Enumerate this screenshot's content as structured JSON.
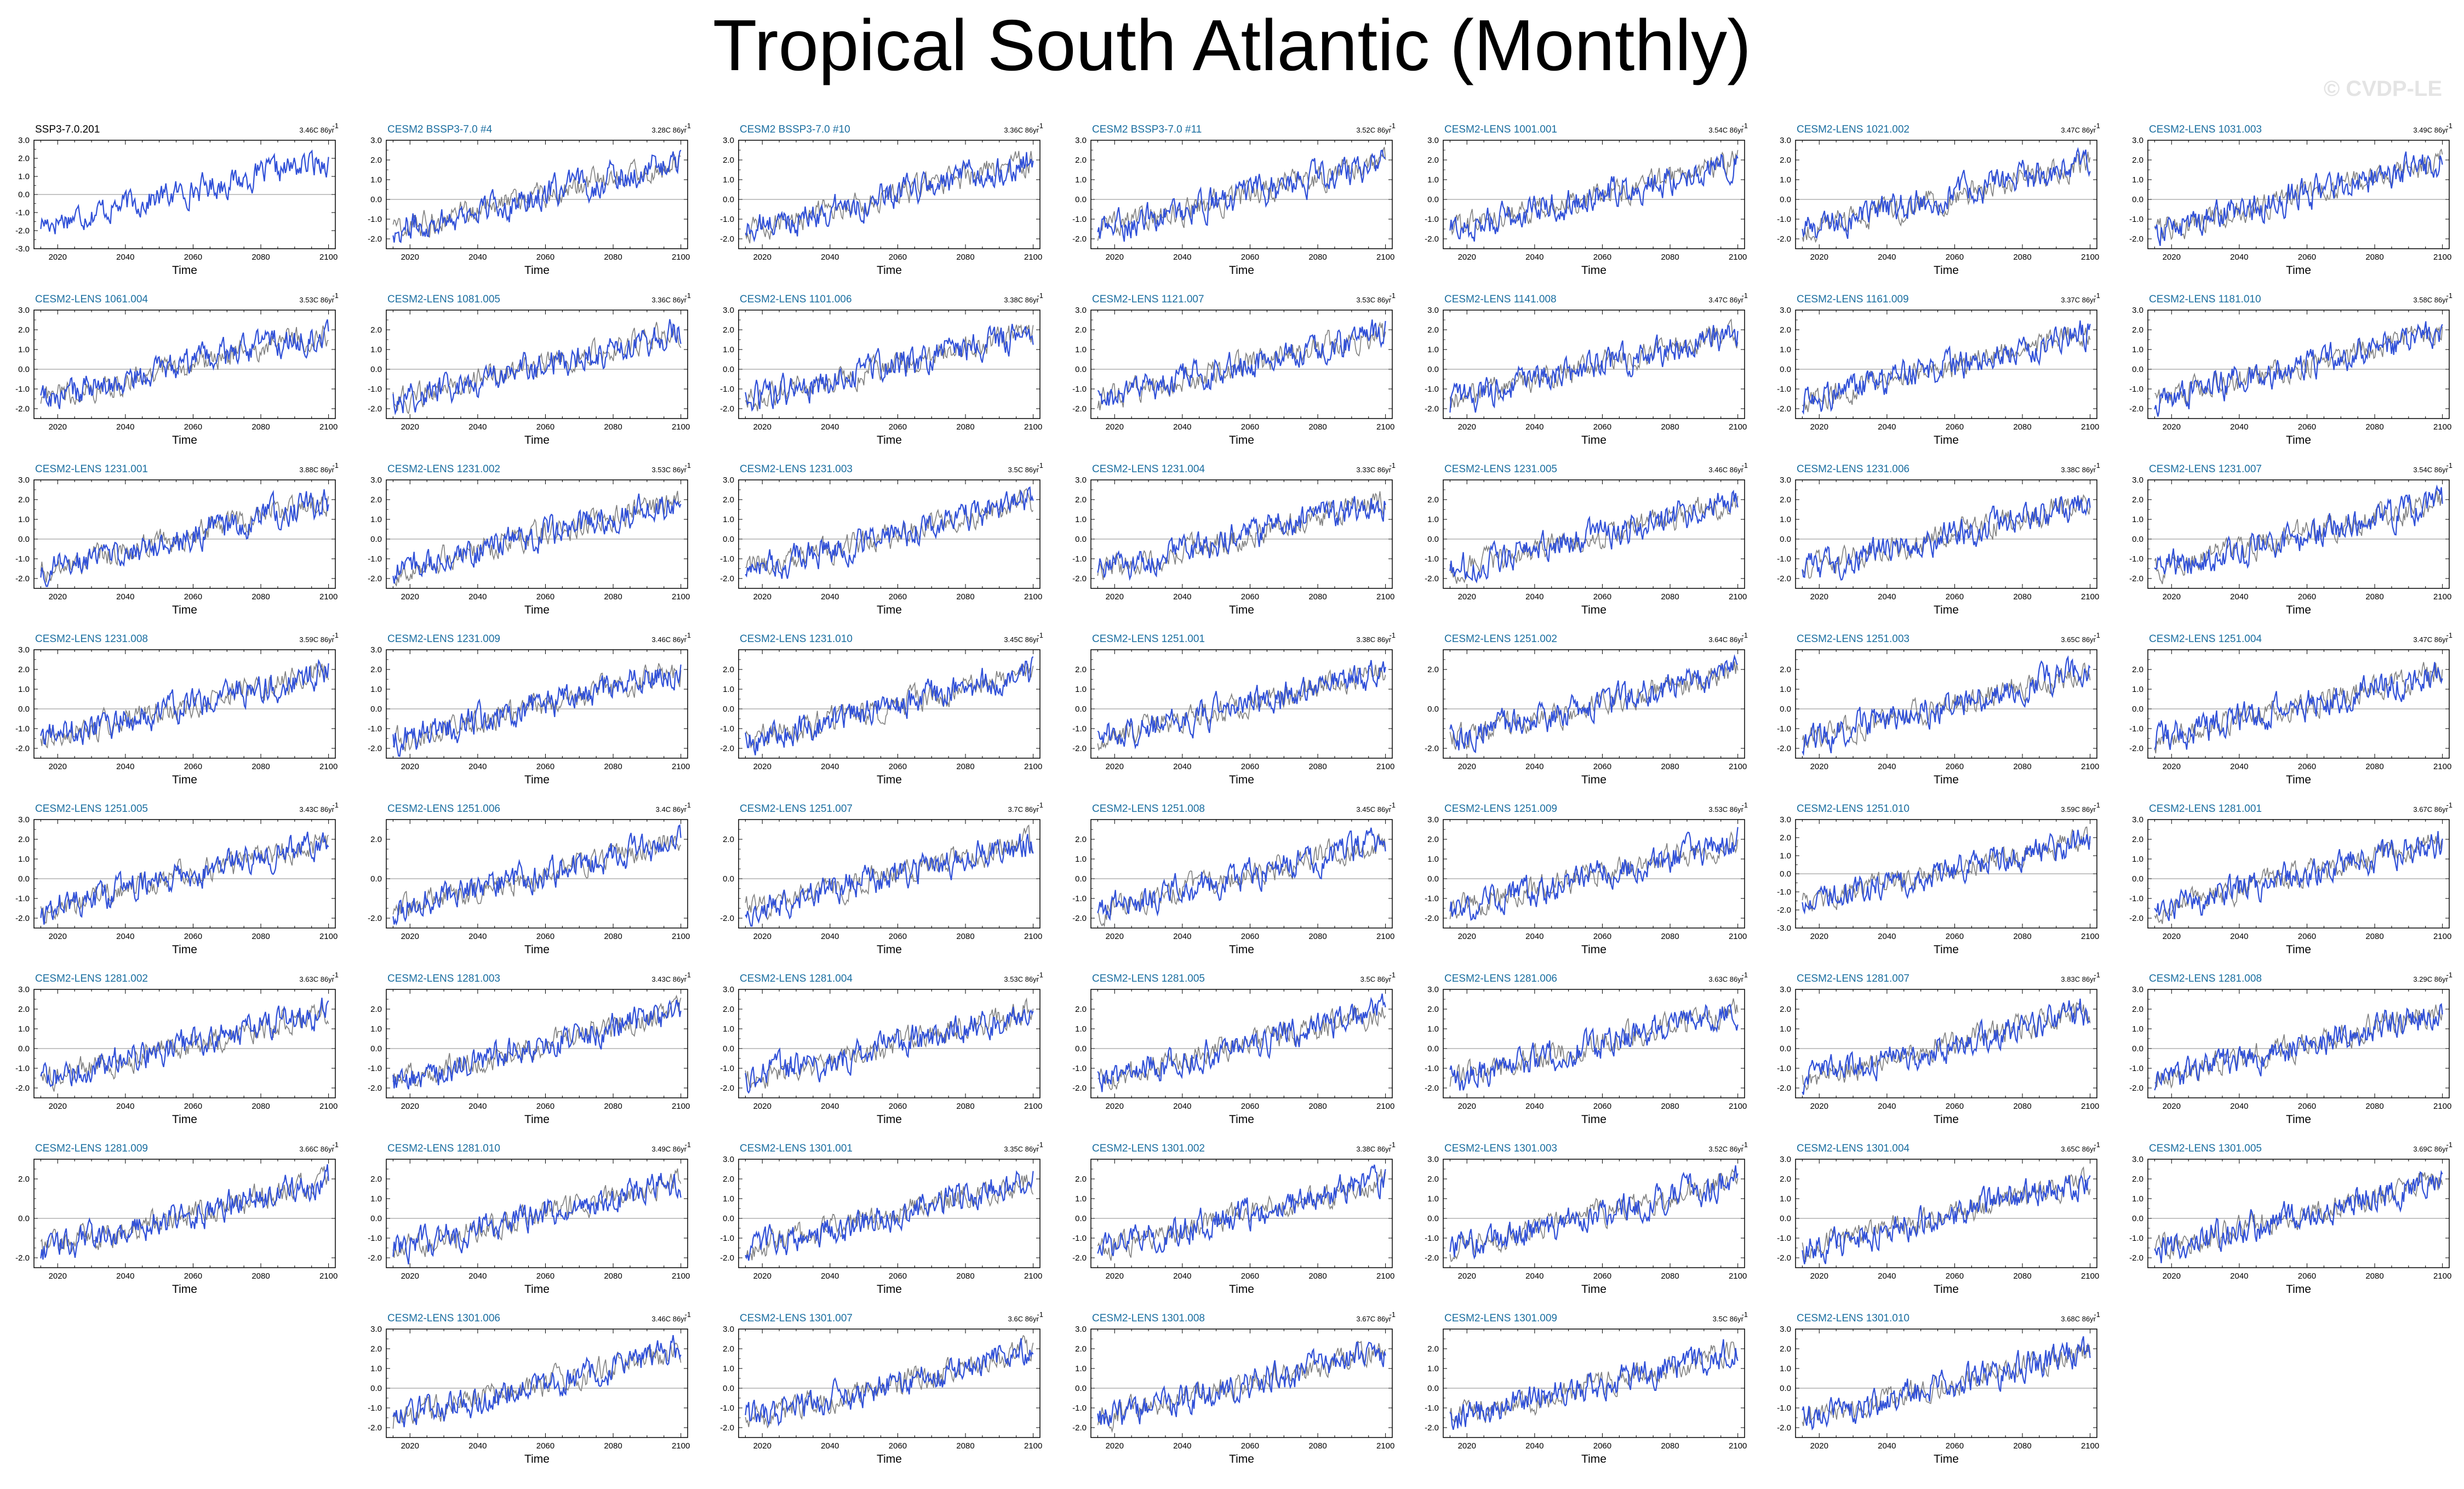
{
  "title": "Tropical South Atlantic (Monthly)",
  "watermark": "© CVDP-LE",
  "chart_data": {
    "type": "line",
    "xlabel": "Time",
    "xlim": [
      2013,
      2102
    ],
    "xticks": [
      2020,
      2040,
      2060,
      2080,
      2100
    ],
    "grid": false,
    "series_colors": {
      "model": "#3050d8",
      "observations": "#7f7f7f"
    },
    "panels": [
      {
        "name": "SSP3-7.0.201",
        "trend": "3.46C 86yr",
        "ylim": [
          -3.0,
          3.0
        ],
        "yticks": [
          "3.0",
          "2.0",
          "1.0",
          "0.0",
          "-1.0",
          "-2.0",
          "-3.0"
        ],
        "obs": true
      },
      {
        "name": "CESM2 BSSP3-7.0 #4",
        "trend": "3.28C 86yr",
        "ylim": [
          -2.5,
          3.0
        ],
        "yticks": [
          "3.0",
          "2.0",
          "1.0",
          "0.0",
          "-1.0",
          "-2.0"
        ]
      },
      {
        "name": "CESM2 BSSP3-7.0 #10",
        "trend": "3.36C 86yr",
        "ylim": [
          -2.5,
          3.0
        ],
        "yticks": [
          "3.0",
          "2.0",
          "1.0",
          "0.0",
          "-1.0",
          "-2.0"
        ]
      },
      {
        "name": "CESM2 BSSP3-7.0 #11",
        "trend": "3.52C 86yr",
        "ylim": [
          -2.5,
          3.0
        ],
        "yticks": [
          "3.0",
          "2.0",
          "1.0",
          "0.0",
          "-1.0",
          "-2.0"
        ]
      },
      {
        "name": "CESM2-LENS 1001.001",
        "trend": "3.54C 86yr",
        "ylim": [
          -2.5,
          3.0
        ],
        "yticks": [
          "3.0",
          "2.0",
          "1.0",
          "0.0",
          "-1.0",
          "-2.0"
        ]
      },
      {
        "name": "CESM2-LENS 1021.002",
        "trend": "3.47C 86yr",
        "ylim": [
          -2.5,
          3.0
        ],
        "yticks": [
          "3.0",
          "2.0",
          "1.0",
          "0.0",
          "-1.0",
          "-2.0"
        ]
      },
      {
        "name": "CESM2-LENS 1031.003",
        "trend": "3.49C 86yr",
        "ylim": [
          -2.5,
          3.0
        ],
        "yticks": [
          "3.0",
          "2.0",
          "1.0",
          "0.0",
          "-1.0",
          "-2.0"
        ]
      },
      {
        "name": "CESM2-LENS 1061.004",
        "trend": "3.53C 86yr",
        "ylim": [
          -2.5,
          3.0
        ],
        "yticks": [
          "3.0",
          "2.0",
          "1.0",
          "0.0",
          "-1.0",
          "-2.0"
        ]
      },
      {
        "name": "CESM2-LENS 1081.005",
        "trend": "3.36C 86yr",
        "ylim": [
          -2.5,
          3.0
        ],
        "yticks": [
          "2.0",
          "1.0",
          "0.0",
          "-1.0",
          "-2.0"
        ]
      },
      {
        "name": "CESM2-LENS 1101.006",
        "trend": "3.38C 86yr",
        "ylim": [
          -2.5,
          3.0
        ],
        "yticks": [
          "3.0",
          "2.0",
          "1.0",
          "0.0",
          "-1.0",
          "-2.0"
        ]
      },
      {
        "name": "CESM2-LENS 1121.007",
        "trend": "3.53C 86yr",
        "ylim": [
          -2.5,
          3.0
        ],
        "yticks": [
          "3.0",
          "2.0",
          "1.0",
          "0.0",
          "-1.0",
          "-2.0"
        ]
      },
      {
        "name": "CESM2-LENS 1141.008",
        "trend": "3.47C 86yr",
        "ylim": [
          -2.5,
          3.0
        ],
        "yticks": [
          "3.0",
          "2.0",
          "1.0",
          "0.0",
          "-1.0",
          "-2.0"
        ]
      },
      {
        "name": "CESM2-LENS 1161.009",
        "trend": "3.37C 86yr",
        "ylim": [
          -2.5,
          3.0
        ],
        "yticks": [
          "3.0",
          "2.0",
          "1.0",
          "0.0",
          "-1.0",
          "-2.0"
        ]
      },
      {
        "name": "CESM2-LENS 1181.010",
        "trend": "3.58C 86yr",
        "ylim": [
          -2.5,
          3.0
        ],
        "yticks": [
          "3.0",
          "2.0",
          "1.0",
          "0.0",
          "-1.0",
          "-2.0"
        ]
      },
      {
        "name": "CESM2-LENS 1231.001",
        "trend": "3.88C 86yr",
        "ylim": [
          -2.5,
          3.0
        ],
        "yticks": [
          "3.0",
          "2.0",
          "1.0",
          "0.0",
          "-1.0",
          "-2.0"
        ]
      },
      {
        "name": "CESM2-LENS 1231.002",
        "trend": "3.53C 86yr",
        "ylim": [
          -2.5,
          3.0
        ],
        "yticks": [
          "3.0",
          "2.0",
          "1.0",
          "0.0",
          "-1.0",
          "-2.0"
        ]
      },
      {
        "name": "CESM2-LENS 1231.003",
        "trend": "3.5C 86yr",
        "ylim": [
          -2.5,
          3.0
        ],
        "yticks": [
          "3.0",
          "2.0",
          "1.0",
          "0.0",
          "-1.0",
          "-2.0"
        ]
      },
      {
        "name": "CESM2-LENS 1231.004",
        "trend": "3.33C 86yr",
        "ylim": [
          -2.5,
          3.0
        ],
        "yticks": [
          "3.0",
          "2.0",
          "1.0",
          "0.0",
          "-1.0",
          "-2.0"
        ]
      },
      {
        "name": "CESM2-LENS 1231.005",
        "trend": "3.46C 86yr",
        "ylim": [
          -2.5,
          3.0
        ],
        "yticks": [
          "2.0",
          "1.0",
          "0.0",
          "-1.0",
          "-2.0"
        ]
      },
      {
        "name": "CESM2-LENS 1231.006",
        "trend": "3.38C 86yr",
        "ylim": [
          -2.5,
          3.0
        ],
        "yticks": [
          "3.0",
          "2.0",
          "1.0",
          "0.0",
          "-1.0",
          "-2.0"
        ]
      },
      {
        "name": "CESM2-LENS 1231.007",
        "trend": "3.54C 86yr",
        "ylim": [
          -2.5,
          3.0
        ],
        "yticks": [
          "3.0",
          "2.0",
          "1.0",
          "0.0",
          "-1.0",
          "-2.0"
        ]
      },
      {
        "name": "CESM2-LENS 1231.008",
        "trend": "3.59C 86yr",
        "ylim": [
          -2.5,
          3.0
        ],
        "yticks": [
          "3.0",
          "2.0",
          "1.0",
          "0.0",
          "-1.0",
          "-2.0"
        ]
      },
      {
        "name": "CESM2-LENS 1231.009",
        "trend": "3.46C 86yr",
        "ylim": [
          -2.5,
          3.0
        ],
        "yticks": [
          "3.0",
          "2.0",
          "1.0",
          "0.0",
          "-1.0",
          "-2.0"
        ]
      },
      {
        "name": "CESM2-LENS 1231.010",
        "trend": "3.45C 86yr",
        "ylim": [
          -2.5,
          3.0
        ],
        "yticks": [
          "2.0",
          "1.0",
          "0.0",
          "-1.0",
          "-2.0"
        ]
      },
      {
        "name": "CESM2-LENS 1251.001",
        "trend": "3.38C 86yr",
        "ylim": [
          -2.5,
          3.0
        ],
        "yticks": [
          "2.0",
          "1.0",
          "0.0",
          "-1.0",
          "-2.0"
        ]
      },
      {
        "name": "CESM2-LENS 1251.002",
        "trend": "3.64C 86yr",
        "ylim": [
          -2.5,
          3.0
        ],
        "yticks": [
          "2.0",
          "0.0",
          "-2.0"
        ]
      },
      {
        "name": "CESM2-LENS 1251.003",
        "trend": "3.65C 86yr",
        "ylim": [
          -2.5,
          3.0
        ],
        "yticks": [
          "2.0",
          "1.0",
          "0.0",
          "-1.0",
          "-2.0"
        ]
      },
      {
        "name": "CESM2-LENS 1251.004",
        "trend": "3.47C 86yr",
        "ylim": [
          -2.5,
          3.0
        ],
        "yticks": [
          "2.0",
          "1.0",
          "0.0",
          "-1.0",
          "-2.0"
        ]
      },
      {
        "name": "CESM2-LENS 1251.005",
        "trend": "3.43C 86yr",
        "ylim": [
          -2.5,
          3.0
        ],
        "yticks": [
          "3.0",
          "2.0",
          "1.0",
          "0.0",
          "-1.0",
          "-2.0"
        ]
      },
      {
        "name": "CESM2-LENS 1251.006",
        "trend": "3.4C 86yr",
        "ylim": [
          -2.5,
          3.0
        ],
        "yticks": [
          "2.0",
          "0.0",
          "-2.0"
        ]
      },
      {
        "name": "CESM2-LENS 1251.007",
        "trend": "3.7C 86yr",
        "ylim": [
          -2.5,
          3.0
        ],
        "yticks": [
          "2.0",
          "0.0",
          "-2.0"
        ]
      },
      {
        "name": "CESM2-LENS 1251.008",
        "trend": "3.45C 86yr",
        "ylim": [
          -2.5,
          3.0
        ],
        "yticks": [
          "2.0",
          "1.0",
          "0.0",
          "-1.0",
          "-2.0"
        ]
      },
      {
        "name": "CESM2-LENS 1251.009",
        "trend": "3.53C 86yr",
        "ylim": [
          -2.5,
          3.0
        ],
        "yticks": [
          "3.0",
          "2.0",
          "1.0",
          "0.0",
          "-1.0",
          "-2.0"
        ]
      },
      {
        "name": "CESM2-LENS 1251.010",
        "trend": "3.59C 86yr",
        "ylim": [
          -3.0,
          3.0
        ],
        "yticks": [
          "3.0",
          "2.0",
          "1.0",
          "0.0",
          "-1.0",
          "-2.0",
          "-3.0"
        ]
      },
      {
        "name": "CESM2-LENS 1281.001",
        "trend": "3.67C 86yr",
        "ylim": [
          -2.5,
          3.0
        ],
        "yticks": [
          "3.0",
          "2.0",
          "1.0",
          "0.0",
          "-1.0",
          "-2.0"
        ]
      },
      {
        "name": "CESM2-LENS 1281.002",
        "trend": "3.63C 86yr",
        "ylim": [
          -2.5,
          3.0
        ],
        "yticks": [
          "3.0",
          "2.0",
          "1.0",
          "0.0",
          "-1.0",
          "-2.0"
        ]
      },
      {
        "name": "CESM2-LENS 1281.003",
        "trend": "3.43C 86yr",
        "ylim": [
          -2.5,
          3.0
        ],
        "yticks": [
          "2.0",
          "1.0",
          "0.0",
          "-1.0",
          "-2.0"
        ]
      },
      {
        "name": "CESM2-LENS 1281.004",
        "trend": "3.53C 86yr",
        "ylim": [
          -2.5,
          3.0
        ],
        "yticks": [
          "3.0",
          "2.0",
          "1.0",
          "0.0",
          "-1.0",
          "-2.0"
        ]
      },
      {
        "name": "CESM2-LENS 1281.005",
        "trend": "3.5C 86yr",
        "ylim": [
          -2.5,
          3.0
        ],
        "yticks": [
          "2.0",
          "1.0",
          "0.0",
          "-1.0",
          "-2.0"
        ]
      },
      {
        "name": "CESM2-LENS 1281.006",
        "trend": "3.63C 86yr",
        "ylim": [
          -2.5,
          3.0
        ],
        "yticks": [
          "3.0",
          "2.0",
          "1.0",
          "0.0",
          "-1.0",
          "-2.0"
        ]
      },
      {
        "name": "CESM2-LENS 1281.007",
        "trend": "3.83C 86yr",
        "ylim": [
          -2.5,
          3.0
        ],
        "yticks": [
          "3.0",
          "2.0",
          "1.0",
          "0.0",
          "-1.0",
          "-2.0"
        ]
      },
      {
        "name": "CESM2-LENS 1281.008",
        "trend": "3.29C 86yr",
        "ylim": [
          -2.5,
          3.0
        ],
        "yticks": [
          "3.0",
          "2.0",
          "1.0",
          "0.0",
          "-1.0",
          "-2.0"
        ]
      },
      {
        "name": "CESM2-LENS 1281.009",
        "trend": "3.66C 86yr",
        "ylim": [
          -2.5,
          3.0
        ],
        "yticks": [
          "2.0",
          "0.0",
          "-2.0"
        ]
      },
      {
        "name": "CESM2-LENS 1281.010",
        "trend": "3.49C 86yr",
        "ylim": [
          -2.5,
          3.0
        ],
        "yticks": [
          "2.0",
          "1.0",
          "0.0",
          "-1.0",
          "-2.0"
        ]
      },
      {
        "name": "CESM2-LENS 1301.001",
        "trend": "3.35C 86yr",
        "ylim": [
          -2.5,
          3.0
        ],
        "yticks": [
          "3.0",
          "2.0",
          "1.0",
          "0.0",
          "-1.0",
          "-2.0"
        ]
      },
      {
        "name": "CESM2-LENS 1301.002",
        "trend": "3.38C 86yr",
        "ylim": [
          -2.5,
          3.0
        ],
        "yticks": [
          "2.0",
          "1.0",
          "0.0",
          "-1.0",
          "-2.0"
        ]
      },
      {
        "name": "CESM2-LENS 1301.003",
        "trend": "3.52C 86yr",
        "ylim": [
          -2.5,
          3.0
        ],
        "yticks": [
          "3.0",
          "2.0",
          "1.0",
          "0.0",
          "-1.0",
          "-2.0"
        ]
      },
      {
        "name": "CESM2-LENS 1301.004",
        "trend": "3.65C 86yr",
        "ylim": [
          -2.5,
          3.0
        ],
        "yticks": [
          "3.0",
          "2.0",
          "1.0",
          "0.0",
          "-1.0",
          "-2.0"
        ]
      },
      {
        "name": "CESM2-LENS 1301.005",
        "trend": "3.69C 86yr",
        "ylim": [
          -2.5,
          3.0
        ],
        "yticks": [
          "3.0",
          "2.0",
          "1.0",
          "0.0",
          "-1.0",
          "-2.0"
        ]
      },
      {
        "name": "CESM2-LENS 1301.006",
        "trend": "3.46C 86yr",
        "ylim": [
          -2.5,
          3.0
        ],
        "yticks": [
          "3.0",
          "2.0",
          "1.0",
          "0.0",
          "-1.0",
          "-2.0"
        ]
      },
      {
        "name": "CESM2-LENS 1301.007",
        "trend": "3.6C 86yr",
        "ylim": [
          -2.5,
          3.0
        ],
        "yticks": [
          "3.0",
          "2.0",
          "1.0",
          "0.0",
          "-1.0",
          "-2.0"
        ]
      },
      {
        "name": "CESM2-LENS 1301.008",
        "trend": "3.67C 86yr",
        "ylim": [
          -2.5,
          3.0
        ],
        "yticks": [
          "3.0",
          "2.0",
          "1.0",
          "0.0",
          "-1.0",
          "-2.0"
        ]
      },
      {
        "name": "CESM2-LENS 1301.009",
        "trend": "3.5C 86yr",
        "ylim": [
          -2.5,
          3.0
        ],
        "yticks": [
          "2.0",
          "1.0",
          "0.0",
          "-1.0",
          "-2.0"
        ]
      },
      {
        "name": "CESM2-LENS 1301.010",
        "trend": "3.68C 86yr",
        "ylim": [
          -2.5,
          3.0
        ],
        "yticks": [
          "3.0",
          "2.0",
          "1.0",
          "0.0",
          "-1.0",
          "-2.0"
        ]
      }
    ],
    "anomaly_model": {
      "start_year": 2015,
      "end_year": 2100,
      "start_value": -1.6,
      "end_value": 1.9
    }
  }
}
